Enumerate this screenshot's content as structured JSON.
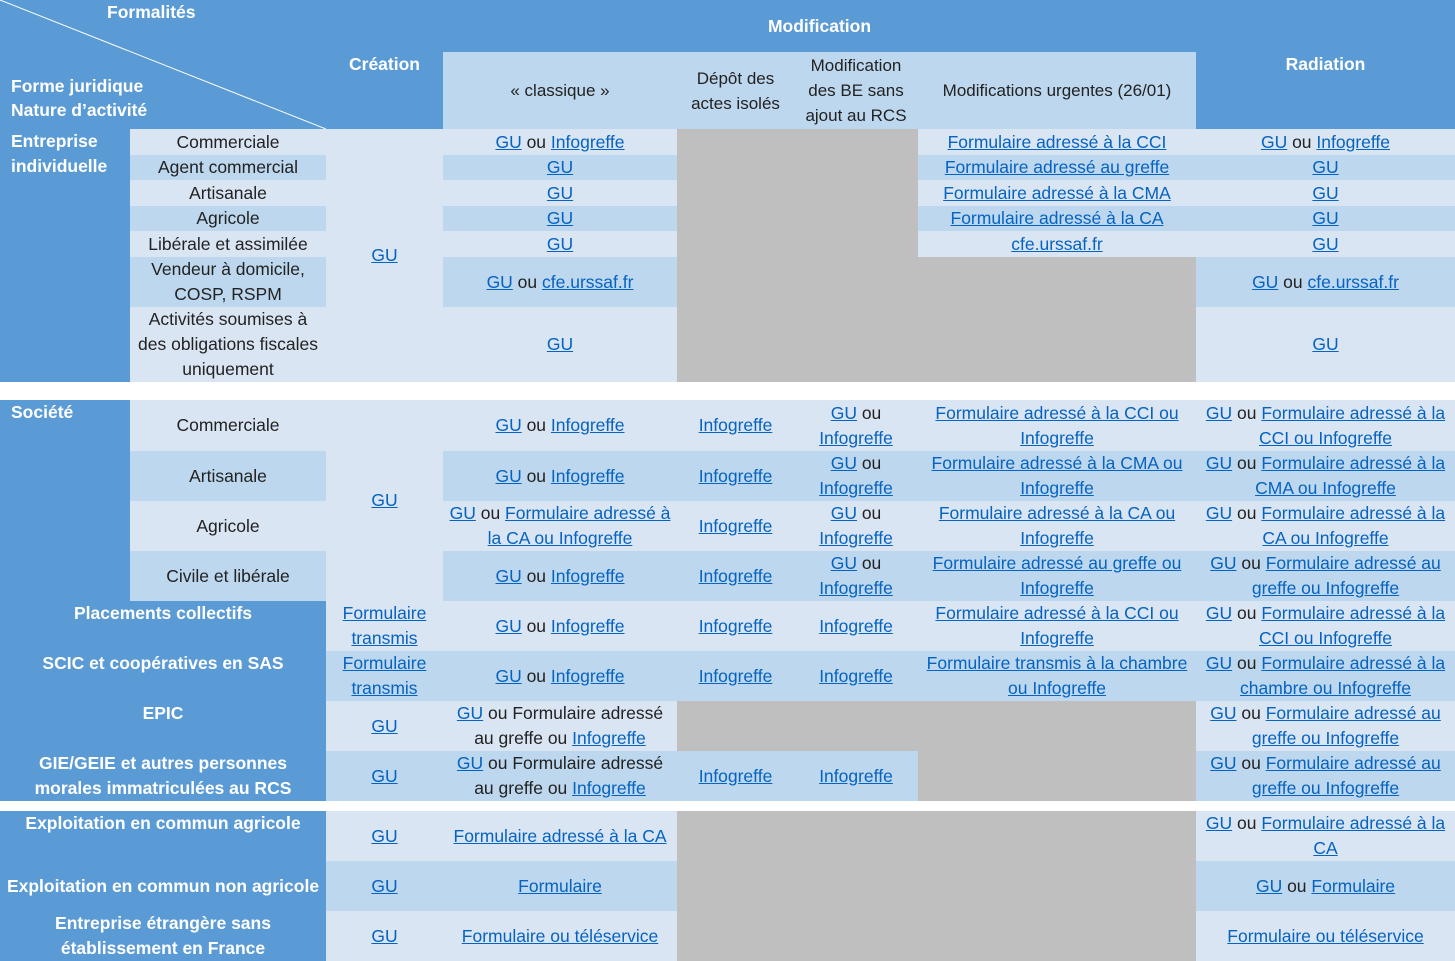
{
  "header": {
    "formalites": "Formalités",
    "forme_juridique": "Forme juridique",
    "nature_activite": "Nature d’activité",
    "creation": "Création",
    "modification": "Modification",
    "radiation": "Radiation",
    "classique": "« classique »",
    "depot": "Dépôt des actes isolés",
    "modif_be": "Modification des BE sans ajout au RCS",
    "urgentes": "Modifications urgentes (26/01)"
  },
  "groups": {
    "ei": "Entreprise individuelle",
    "societe": "Société",
    "placements": "Placements collectifs",
    "scic": "SCIC et coopératives en SAS",
    "epic": "EPIC",
    "gie": "GIE/GEIE et autres personnes morales immatriculées au RCS",
    "eca": "Exploitation en commun agricole",
    "ecna": "Exploitation en commun non agricole",
    "etrangere": "Entreprise étrangère sans établissement en France"
  },
  "sub": {
    "commerciale": "Commerciale",
    "agent": "Agent commercial",
    "artisanale": "Artisanale",
    "agricole": "Agricole",
    "liberale": "Libérale et assimilée",
    "vendeur": "Vendeur à domicile, COSP, RSPM",
    "fiscales": "Activités soumises à des obligations fiscales uniquement",
    "s_commerciale": "Commerciale",
    "s_artisanale": "Artisanale",
    "s_agricole": "Agricole",
    "s_civile": "Civile et libérale"
  },
  "t": {
    "gu": "GU",
    "ou": " ou ",
    "infogreffe": "Infogreffe",
    "cfe": "cfe.urssaf.fr",
    "f_cci": "Formulaire adressé à la CCI",
    "f_greffe": "Formulaire adressé au greffe",
    "f_cma": "Formulaire adressé à la CMA",
    "f_ca": "Formulaire adressé à la CA",
    "f_cci_i": "Formulaire adressé à la CCI ou Infogreffe",
    "f_cma_i": "Formulaire adressé à la CMA ou Infogreffe",
    "f_ca_i": "Formulaire adressé à la CA ou Infogreffe",
    "f_greffe_i": "Formulaire adressé au greffe ou  Infogreffe",
    "f_greffe_i2": "Formulaire adressé au greffe ou Infogreffe",
    "f_transmis": "Formulaire transmis",
    "f_transmis_ch": "Formulaire transmis à la chambre ou Infogreffe",
    "f_chambre_i": "Formulaire adressé à la chambre ou Infogreffe",
    "f_greffe_plain": "Formulaire adressé au greffe ou ",
    "formulaire": "Formulaire",
    "teleservice": "Formulaire ou téléservice"
  }
}
